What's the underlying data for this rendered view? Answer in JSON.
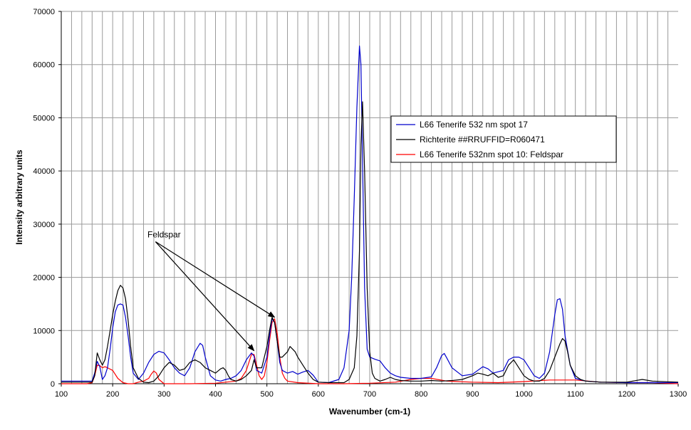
{
  "chart_data": {
    "type": "line",
    "xlabel": "Wavenumber (cm-1)",
    "ylabel": "Intensity arbitrary units",
    "xlim": [
      100,
      1300
    ],
    "ylim": [
      0,
      70000
    ],
    "x_ticks": [
      100,
      200,
      300,
      400,
      500,
      600,
      700,
      800,
      900,
      1000,
      1100,
      1200,
      1300
    ],
    "y_ticks": [
      0,
      10000,
      20000,
      30000,
      40000,
      50000,
      60000,
      70000
    ],
    "x_tick_labels": [
      "100",
      "200",
      "300",
      "400",
      "500",
      "600",
      "700",
      "800",
      "900",
      "1000",
      "1100",
      "1200",
      "1300"
    ],
    "y_tick_labels": [
      "0",
      "10000",
      "20000",
      "30000",
      "40000",
      "50000",
      "60000",
      "70000"
    ],
    "grid": true,
    "legend_position": "right",
    "series": [
      {
        "name": "L66 Tenerife 532 nm spot 17",
        "color": "#0000cc",
        "x": [
          100,
          150,
          160,
          165,
          170,
          175,
          180,
          185,
          190,
          195,
          200,
          205,
          210,
          215,
          220,
          225,
          230,
          235,
          240,
          250,
          260,
          270,
          280,
          290,
          300,
          310,
          320,
          330,
          340,
          350,
          360,
          370,
          375,
          380,
          390,
          400,
          410,
          420,
          430,
          440,
          450,
          460,
          470,
          475,
          480,
          490,
          500,
          505,
          510,
          515,
          520,
          525,
          530,
          540,
          550,
          560,
          570,
          580,
          590,
          600,
          620,
          640,
          650,
          660,
          665,
          670,
          675,
          680,
          683,
          686,
          690,
          695,
          700,
          705,
          710,
          720,
          730,
          740,
          750,
          760,
          780,
          800,
          820,
          830,
          840,
          845,
          850,
          860,
          880,
          900,
          910,
          920,
          930,
          940,
          960,
          970,
          980,
          990,
          1000,
          1010,
          1020,
          1030,
          1040,
          1050,
          1060,
          1065,
          1070,
          1075,
          1080,
          1090,
          1100,
          1120,
          1150,
          1200,
          1250,
          1300
        ],
        "values": [
          500,
          500,
          500,
          2000,
          4200,
          3200,
          800,
          1500,
          3000,
          6500,
          10500,
          13500,
          14800,
          15000,
          14800,
          12500,
          9000,
          5000,
          2000,
          800,
          2000,
          4000,
          5500,
          6100,
          5800,
          4500,
          3000,
          2000,
          1500,
          3000,
          6000,
          7600,
          7200,
          5000,
          1500,
          700,
          500,
          800,
          1000,
          1500,
          2500,
          4500,
          5800,
          5200,
          2500,
          2000,
          5000,
          9000,
          12200,
          11500,
          8000,
          4000,
          2500,
          2000,
          2300,
          1800,
          2200,
          2500,
          1600,
          300,
          200,
          800,
          3000,
          10000,
          20000,
          35000,
          52000,
          63500,
          60000,
          42000,
          18000,
          6500,
          5000,
          4800,
          4600,
          4300,
          3000,
          2000,
          1500,
          1200,
          1000,
          1000,
          1300,
          3000,
          5300,
          5700,
          4800,
          3000,
          1500,
          1800,
          2500,
          3200,
          2800,
          2000,
          2500,
          4500,
          5000,
          5000,
          4500,
          3000,
          1500,
          1000,
          2000,
          6000,
          13000,
          15800,
          16000,
          14000,
          9000,
          3500,
          1000,
          500,
          300,
          200,
          200,
          200
        ]
      },
      {
        "name": "Richterite  ##RRUFFID=R060471",
        "color": "#000000",
        "x": [
          100,
          150,
          160,
          165,
          170,
          175,
          180,
          185,
          190,
          195,
          200,
          205,
          210,
          215,
          220,
          225,
          230,
          235,
          240,
          250,
          260,
          270,
          280,
          290,
          300,
          310,
          320,
          330,
          340,
          350,
          360,
          370,
          380,
          390,
          400,
          410,
          415,
          420,
          425,
          430,
          440,
          450,
          460,
          470,
          475,
          480,
          490,
          500,
          505,
          510,
          515,
          520,
          525,
          530,
          540,
          545,
          550,
          555,
          560,
          570,
          580,
          590,
          600,
          620,
          640,
          650,
          660,
          670,
          675,
          680,
          683,
          686,
          690,
          695,
          700,
          705,
          710,
          720,
          730,
          740,
          750,
          760,
          780,
          800,
          820,
          840,
          860,
          880,
          900,
          910,
          920,
          930,
          940,
          950,
          960,
          970,
          980,
          990,
          1000,
          1010,
          1020,
          1030,
          1040,
          1050,
          1060,
          1070,
          1075,
          1080,
          1085,
          1090,
          1100,
          1110,
          1120,
          1150,
          1200,
          1230,
          1250,
          1300
        ],
        "values": [
          300,
          300,
          300,
          1500,
          5800,
          4500,
          3500,
          4500,
          7000,
          10000,
          13000,
          15500,
          17500,
          18500,
          18000,
          16000,
          12000,
          7000,
          3000,
          1000,
          300,
          200,
          500,
          1500,
          3000,
          4000,
          3500,
          2500,
          2800,
          4000,
          4500,
          4000,
          3000,
          2500,
          2000,
          2800,
          3000,
          2500,
          1500,
          800,
          500,
          800,
          1500,
          2500,
          4500,
          3000,
          3000,
          7000,
          10000,
          12500,
          11500,
          8000,
          5000,
          5000,
          6000,
          7000,
          6500,
          6000,
          5000,
          3500,
          2000,
          800,
          300,
          200,
          200,
          200,
          800,
          3000,
          9000,
          25000,
          45000,
          53000,
          40000,
          18000,
          6000,
          2000,
          1000,
          500,
          800,
          1200,
          800,
          600,
          500,
          500,
          600,
          500,
          600,
          800,
          1500,
          2000,
          1800,
          1500,
          2000,
          1200,
          1500,
          3500,
          4500,
          3000,
          1500,
          800,
          500,
          500,
          1000,
          2500,
          5000,
          7500,
          8500,
          8000,
          6000,
          3500,
          1500,
          800,
          500,
          300,
          300,
          800,
          500,
          300
        ]
      },
      {
        "name": "L66 Tenerife 532nm spot 10: Feldspar",
        "color": "#ff0000",
        "x": [
          100,
          150,
          160,
          165,
          170,
          175,
          180,
          185,
          190,
          200,
          210,
          220,
          230,
          240,
          250,
          260,
          270,
          275,
          280,
          285,
          290,
          300,
          320,
          350,
          400,
          440,
          450,
          460,
          465,
          470,
          475,
          480,
          485,
          490,
          495,
          500,
          505,
          510,
          515,
          520,
          525,
          530,
          535,
          540,
          560,
          600,
          650,
          700,
          750,
          780,
          800,
          820,
          850,
          900,
          950,
          1000,
          1050,
          1100,
          1150,
          1200,
          1250,
          1300
        ],
        "values": [
          0,
          0,
          200,
          1500,
          3500,
          3400,
          3000,
          3200,
          3000,
          2500,
          1000,
          200,
          0,
          0,
          300,
          500,
          1000,
          1800,
          2400,
          2000,
          800,
          0,
          0,
          0,
          100,
          500,
          1000,
          2500,
          4000,
          5500,
          5500,
          3500,
          1500,
          800,
          1500,
          4000,
          8000,
          11500,
          12200,
          9500,
          5000,
          2000,
          1000,
          500,
          200,
          0,
          0,
          100,
          300,
          800,
          1000,
          1000,
          500,
          300,
          200,
          400,
          700,
          700,
          300,
          200,
          200,
          0
        ]
      }
    ],
    "annotations": [
      {
        "text": "Feldspar",
        "targets": [
          [
            475,
            6200
          ],
          [
            515,
            12500
          ]
        ],
        "label_at": [
          300,
          27500
        ]
      }
    ]
  }
}
